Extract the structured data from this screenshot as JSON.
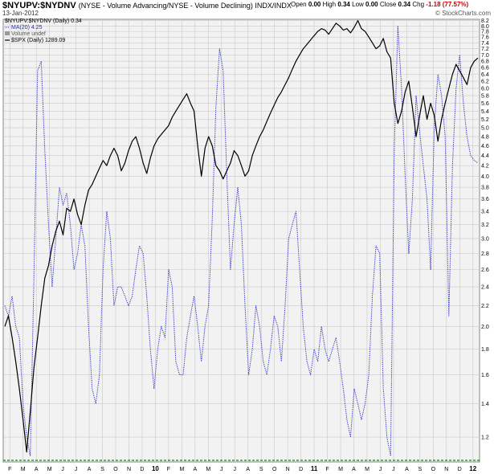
{
  "header": {
    "symbol": "$NYUPV:$NYDNV",
    "description": "(NYSE - Volume Advancing/NYSE - Volume Declining)  INDX/INDX",
    "date": "13-Jan-2012",
    "open_label": "Open",
    "open_value": "0.00",
    "high_label": "High",
    "high_value": "0.34",
    "low_label": "Low",
    "low_value": "0.00",
    "close_label": "Close",
    "close_value": "0.34",
    "chg_label": "Chg",
    "chg_value": "-1.18 (77.57%)",
    "brand": "© StockCharts.com"
  },
  "legend": {
    "main": "$NYUPV:$NYDNV (Daily) 0.34",
    "ma": "MA(20) 4.25",
    "volume": "Volume undef",
    "spx": "$SPX (Daily) 1289.09"
  },
  "colors": {
    "ma": "#2b2bc8",
    "spx": "#000000",
    "baseline": "#0a8a0a",
    "grid": "#c8c8c8",
    "plot_bg": "#f2f2f2"
  },
  "chart_data": {
    "type": "line",
    "y_ticks": [
      "8.2",
      "8.0",
      "7.8",
      "7.6",
      "7.4",
      "7.2",
      "7.0",
      "6.8",
      "6.6",
      "6.4",
      "6.2",
      "6.0",
      "5.8",
      "5.6",
      "5.4",
      "5.2",
      "5.0",
      "4.8",
      "4.6",
      "4.4",
      "4.2",
      "4.0",
      "3.8",
      "3.6",
      "3.4",
      "3.2",
      "3.0",
      "2.8",
      "2.6",
      "2.4",
      "2.2",
      "2.0",
      "1.8",
      "1.6",
      "1.4",
      "1.2"
    ],
    "y_log": true,
    "ylim": [
      1.07,
      8.25
    ],
    "x_labels": [
      "F",
      "M",
      "A",
      "M",
      "J",
      "J",
      "A",
      "S",
      "O",
      "N",
      "D",
      "10",
      "F",
      "M",
      "A",
      "M",
      "J",
      "J",
      "A",
      "S",
      "O",
      "N",
      "D",
      "11",
      "F",
      "M",
      "A",
      "M",
      "J",
      "J",
      "A",
      "S",
      "O",
      "N",
      "D",
      "12"
    ],
    "grid": true,
    "series": [
      {
        "name": "MA(20)",
        "style": "dotted",
        "values": [
          2.2,
          2.1,
          2.3,
          2.0,
          1.9,
          1.4,
          1.2,
          1.1,
          2.5,
          6.5,
          6.8,
          4.5,
          3.2,
          2.4,
          3.0,
          3.8,
          3.5,
          3.7,
          3.2,
          2.6,
          2.8,
          3.2,
          2.9,
          2.0,
          1.5,
          1.4,
          1.6,
          2.6,
          3.4,
          3.0,
          2.2,
          2.4,
          2.4,
          2.3,
          2.2,
          2.3,
          2.6,
          2.9,
          2.8,
          2.3,
          1.8,
          1.5,
          1.8,
          2.0,
          1.9,
          2.6,
          2.4,
          1.7,
          1.6,
          1.6,
          1.9,
          2.1,
          2.3,
          2.0,
          1.7,
          2.0,
          2.2,
          3.3,
          5.5,
          7.2,
          6.5,
          4.0,
          2.6,
          3.2,
          3.8,
          3.2,
          2.2,
          1.6,
          1.8,
          2.2,
          2.0,
          1.7,
          1.6,
          1.8,
          2.1,
          2.0,
          1.7,
          2.2,
          3.0,
          3.2,
          3.4,
          2.6,
          2.0,
          1.7,
          1.6,
          1.8,
          1.7,
          2.0,
          1.8,
          1.7,
          1.8,
          1.9,
          1.7,
          1.5,
          1.3,
          1.2,
          1.5,
          1.4,
          1.3,
          1.4,
          1.6,
          2.3,
          2.9,
          2.8,
          1.5,
          1.2,
          1.1,
          4.5,
          8.0,
          6.0,
          4.0,
          2.8,
          3.6,
          5.8,
          4.9,
          4.2,
          3.6,
          2.6,
          5.0,
          6.4,
          5.8,
          4.8,
          2.1,
          4.2,
          6.0,
          7.0,
          5.6,
          4.8,
          4.4,
          4.3,
          4.25
        ]
      },
      {
        "name": "$SPX (Daily)",
        "style": "solid",
        "scale": "overlay",
        "values": [
          2.0,
          2.1,
          1.9,
          1.7,
          1.5,
          1.3,
          1.12,
          1.35,
          1.65,
          1.9,
          2.2,
          2.5,
          2.65,
          2.9,
          3.1,
          3.25,
          3.05,
          3.45,
          3.4,
          3.6,
          3.35,
          3.2,
          3.5,
          3.75,
          3.85,
          4.0,
          4.15,
          4.3,
          4.2,
          4.4,
          4.55,
          4.4,
          4.1,
          4.25,
          4.5,
          4.7,
          4.8,
          4.55,
          4.25,
          4.05,
          4.35,
          4.6,
          4.75,
          4.85,
          4.95,
          5.05,
          5.25,
          5.4,
          5.55,
          5.7,
          5.85,
          5.6,
          5.4,
          4.6,
          4.0,
          4.55,
          4.8,
          4.6,
          4.2,
          4.1,
          3.95,
          4.1,
          4.25,
          4.5,
          4.4,
          4.2,
          4.0,
          4.1,
          4.4,
          4.6,
          4.8,
          4.95,
          5.15,
          5.35,
          5.55,
          5.75,
          5.9,
          6.1,
          6.3,
          6.55,
          6.8,
          7.0,
          7.2,
          7.35,
          7.5,
          7.65,
          7.8,
          7.9,
          7.85,
          7.7,
          7.9,
          8.1,
          8.0,
          7.85,
          7.9,
          7.75,
          7.95,
          8.2,
          7.9,
          7.8,
          7.6,
          7.4,
          7.2,
          7.3,
          7.55,
          7.1,
          6.9,
          5.6,
          5.1,
          5.4,
          5.9,
          6.2,
          5.5,
          4.8,
          5.3,
          5.8,
          5.2,
          5.6,
          5.3,
          4.7,
          5.2,
          5.6,
          6.0,
          6.4,
          6.7,
          6.5,
          6.3,
          6.1,
          6.6,
          6.8,
          6.9
        ]
      }
    ]
  }
}
